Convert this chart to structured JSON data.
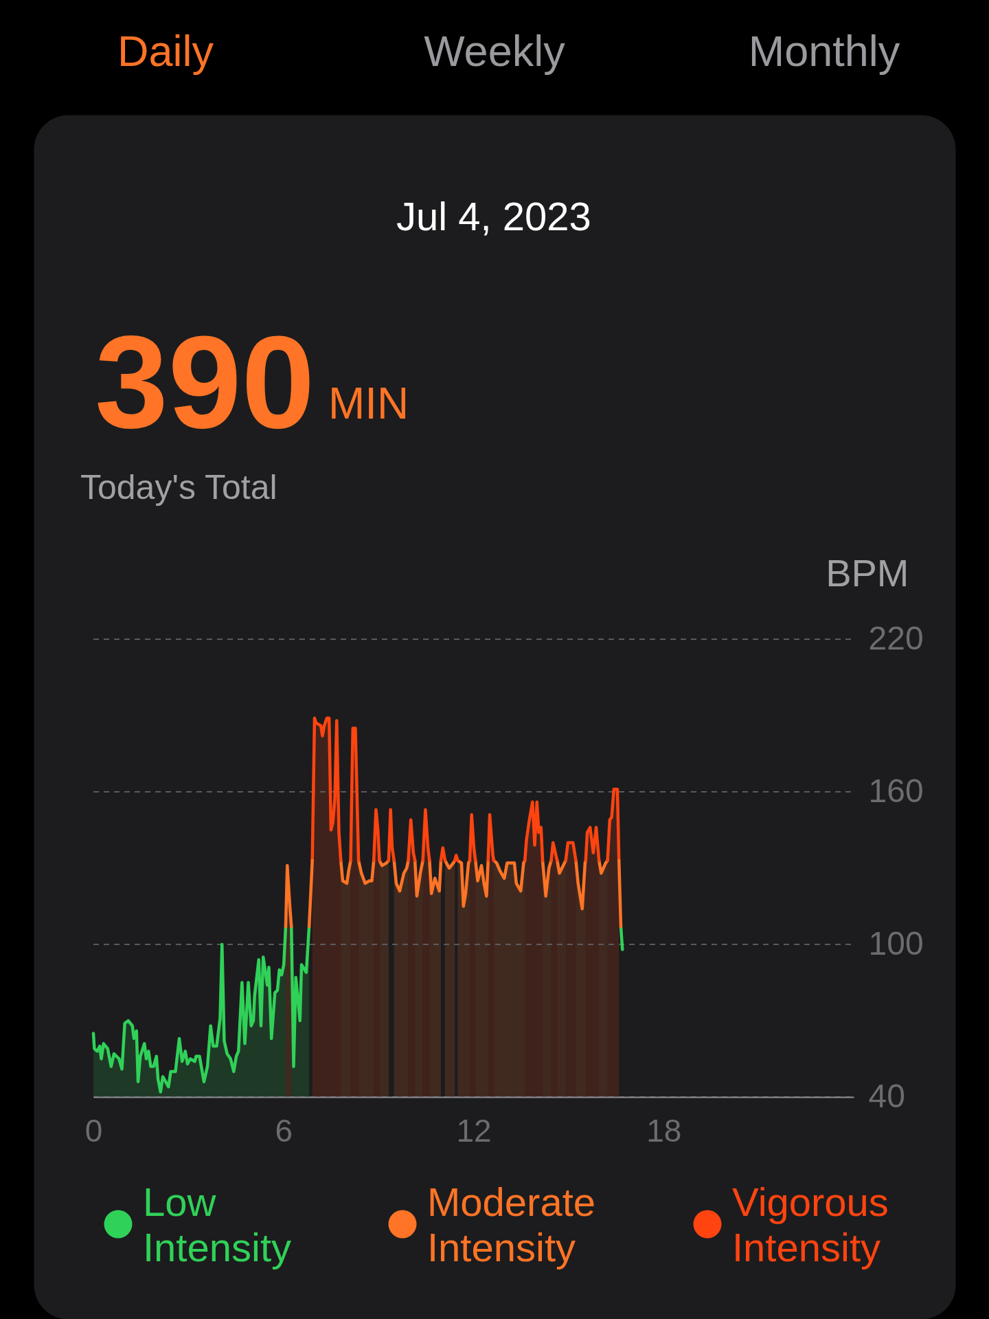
{
  "chart_data": {
    "type": "area",
    "title": "Jul 4, 2023",
    "ylabel": "BPM",
    "annotations": [
      "Daily",
      "Weekly",
      "Monthly",
      "390",
      "MIN",
      "Today's Total"
    ],
    "xlim": [
      0,
      24
    ],
    "xticks": [
      0,
      6,
      12,
      18
    ],
    "ylim": [
      40,
      220
    ],
    "yticks": [
      40,
      100,
      160,
      220
    ],
    "grid": "y",
    "legend": "bottom",
    "series": [
      {
        "name": "Low Intensity",
        "color": "#30d158",
        "x": [
          0,
          0.03,
          0.12,
          0.2,
          0.25,
          0.32,
          0.45,
          0.56,
          0.65,
          0.81,
          0.9,
          0.99,
          1.1,
          1.23,
          1.28,
          1.36,
          1.41,
          1.48,
          1.61,
          1.67,
          1.74,
          1.81,
          1.9,
          1.99,
          2.04,
          2.12,
          2.19,
          2.37,
          2.44,
          2.59,
          2.71,
          2.8,
          2.9,
          2.97,
          3.06,
          3.2,
          3.24,
          3.35,
          3.42,
          3.49,
          3.6,
          3.7,
          3.78,
          3.89,
          4.0,
          4.06,
          4.13,
          4.22,
          4.33,
          4.43,
          4.51,
          4.58,
          4.69,
          4.78,
          4.89,
          4.98,
          5.05,
          5.09,
          5.22,
          5.29,
          5.36,
          5.49,
          5.54,
          5.62,
          5.73,
          5.81,
          5.87,
          5.94,
          6.01,
          6.07,
          6.16,
          6.25,
          6.32,
          6.39,
          6.52,
          6.57,
          6.72,
          6.81
        ],
        "values": [
          65,
          59,
          58,
          60,
          55,
          61,
          59,
          52,
          57,
          55,
          51,
          69,
          70,
          68,
          63,
          66,
          46,
          56,
          61,
          55,
          58,
          52,
          52,
          56,
          47,
          42,
          48,
          44,
          50,
          50,
          63,
          54,
          58,
          53,
          55,
          54,
          56,
          56,
          51,
          46,
          52,
          68,
          60,
          60,
          71,
          100,
          62,
          57,
          55,
          50,
          56,
          58,
          85,
          61,
          85,
          68,
          70,
          80,
          94,
          68,
          95,
          84,
          91,
          63,
          81,
          82,
          90,
          88,
          92,
          107,
          null,
          107,
          52,
          87,
          70,
          92,
          89,
          107
        ]
      },
      {
        "name": "Moderate Intensity",
        "color": "#ff7426",
        "x": [
          6.07,
          6.12,
          6.2,
          6.25,
          7.03,
          7.81,
          7.87,
          8.0,
          8.06,
          8.12,
          8.25,
          8.37,
          8.46,
          8.58,
          8.71,
          8.79,
          8.85,
          8.94,
          9.03,
          9.11,
          9.25,
          9.32,
          9.4,
          9.49,
          9.56,
          9.67,
          9.8,
          9.89,
          9.94,
          10.05,
          10.15,
          10.21,
          10.32,
          10.4,
          10.5,
          10.61,
          10.67,
          10.78,
          10.92,
          10.97,
          11.03,
          11.1,
          11.23,
          11.36,
          11.41,
          11.45,
          11.5,
          11.62,
          11.68,
          11.75,
          11.84,
          11.88,
          11.97,
          12.06,
          12.13,
          12.25,
          12.33,
          12.41,
          12.46,
          12.55,
          12.64,
          12.73,
          12.83,
          12.97,
          13.06,
          13.17,
          13.29,
          13.35,
          13.49,
          13.58,
          13.62,
          13.9,
          14.18,
          14.28,
          14.38,
          14.45,
          14.55,
          14.64,
          14.71,
          14.87,
          14.91,
          15.07,
          15.23,
          15.3,
          15.43,
          15.52,
          15.54,
          15.75,
          15.96,
          16.03,
          16.17,
          16.23
        ],
        "values": [
          107,
          131,
          115,
          107,
          null,
          133,
          125,
          124,
          129,
          133,
          null,
          133,
          128,
          124,
          125,
          125,
          133,
          null,
          133,
          131,
          132,
          133,
          null,
          133,
          124,
          121,
          128,
          130,
          133,
          null,
          133,
          119,
          128,
          133,
          null,
          133,
          120,
          126,
          121,
          133,
          null,
          133,
          130,
          132,
          133,
          null,
          133,
          132,
          115,
          120,
          132,
          133,
          null,
          133,
          125,
          131,
          124,
          119,
          133,
          null,
          133,
          132,
          129,
          126,
          132,
          132,
          132,
          124,
          121,
          132,
          133,
          null,
          133,
          119,
          130,
          133,
          null,
          133,
          128,
          132,
          133,
          null,
          133,
          124,
          114,
          132,
          133,
          null,
          133,
          128,
          132,
          133
        ]
      },
      {
        "name": "Vigorous Intensity",
        "color": "#ff4410",
        "x": [
          6.91,
          6.98,
          7.03,
          7.18,
          7.23,
          7.29,
          7.37,
          7.44,
          7.5,
          7.56,
          7.62,
          7.68,
          7.75,
          7.81,
          7.96,
          8.12,
          8.19,
          8.27,
          8.37,
          8.61,
          8.85,
          8.92,
          8.98,
          9.03,
          9.49,
          9.94,
          10.02,
          10.1,
          10.15,
          10.28,
          10.4,
          10.48,
          10.56,
          10.61,
          11.25,
          11.88,
          11.94,
          12.01,
          12.06,
          12.26,
          12.46,
          12.51,
          12.61,
          12.64,
          13.13,
          13.62,
          13.67,
          13.75,
          13.86,
          13.93,
          14.0,
          14.06,
          14.13,
          14.18,
          14.31,
          14.45,
          14.51,
          14.6,
          14.64,
          14.77,
          14.91,
          14.98,
          15.14,
          15.23,
          15.38,
          15.54,
          15.59,
          15.68,
          15.78,
          15.87,
          15.96,
          16.09,
          16.23,
          16.3,
          16.36,
          16.43,
          16.54,
          16.59
        ],
        "values": [
          133,
          189,
          187,
          186,
          182,
          186,
          189,
          189,
          145,
          148,
          157,
          188,
          144,
          133,
          null,
          133,
          185,
          185,
          133,
          null,
          133,
          153,
          145,
          133,
          null,
          133,
          149,
          136,
          133,
          null,
          133,
          153,
          138,
          133,
          null,
          133,
          151,
          138,
          133,
          null,
          133,
          151,
          135,
          133,
          null,
          133,
          141,
          148,
          156,
          139,
          156,
          144,
          146,
          133,
          null,
          133,
          140,
          135,
          133,
          null,
          133,
          140,
          140,
          133,
          null,
          133,
          144,
          146,
          136,
          146,
          133,
          null,
          133,
          149,
          150,
          161,
          161,
          133
        ]
      },
      {
        "type": "line",
        "color": "#30d158",
        "x": [
          16.65,
          16.7
        ],
        "values": [
          107,
          98
        ]
      },
      {
        "type": "line",
        "color": "#ff7426",
        "x": [
          6.81,
          6.91,
          11.75,
          16.59,
          16.65
        ],
        "values": [
          107,
          133,
          null,
          133,
          107
        ]
      },
      {
        "type": "line",
        "color": "#ff4410",
        "x": [
          9.32,
          9.38,
          9.43,
          9.49,
          10.23,
          10.97,
          11.03,
          11.1,
          11.25,
          11.41,
          11.45,
          11.5
        ],
        "values": [
          133,
          153,
          138,
          133,
          null,
          133,
          138,
          133,
          null,
          133,
          135,
          133
        ]
      }
    ]
  }
}
